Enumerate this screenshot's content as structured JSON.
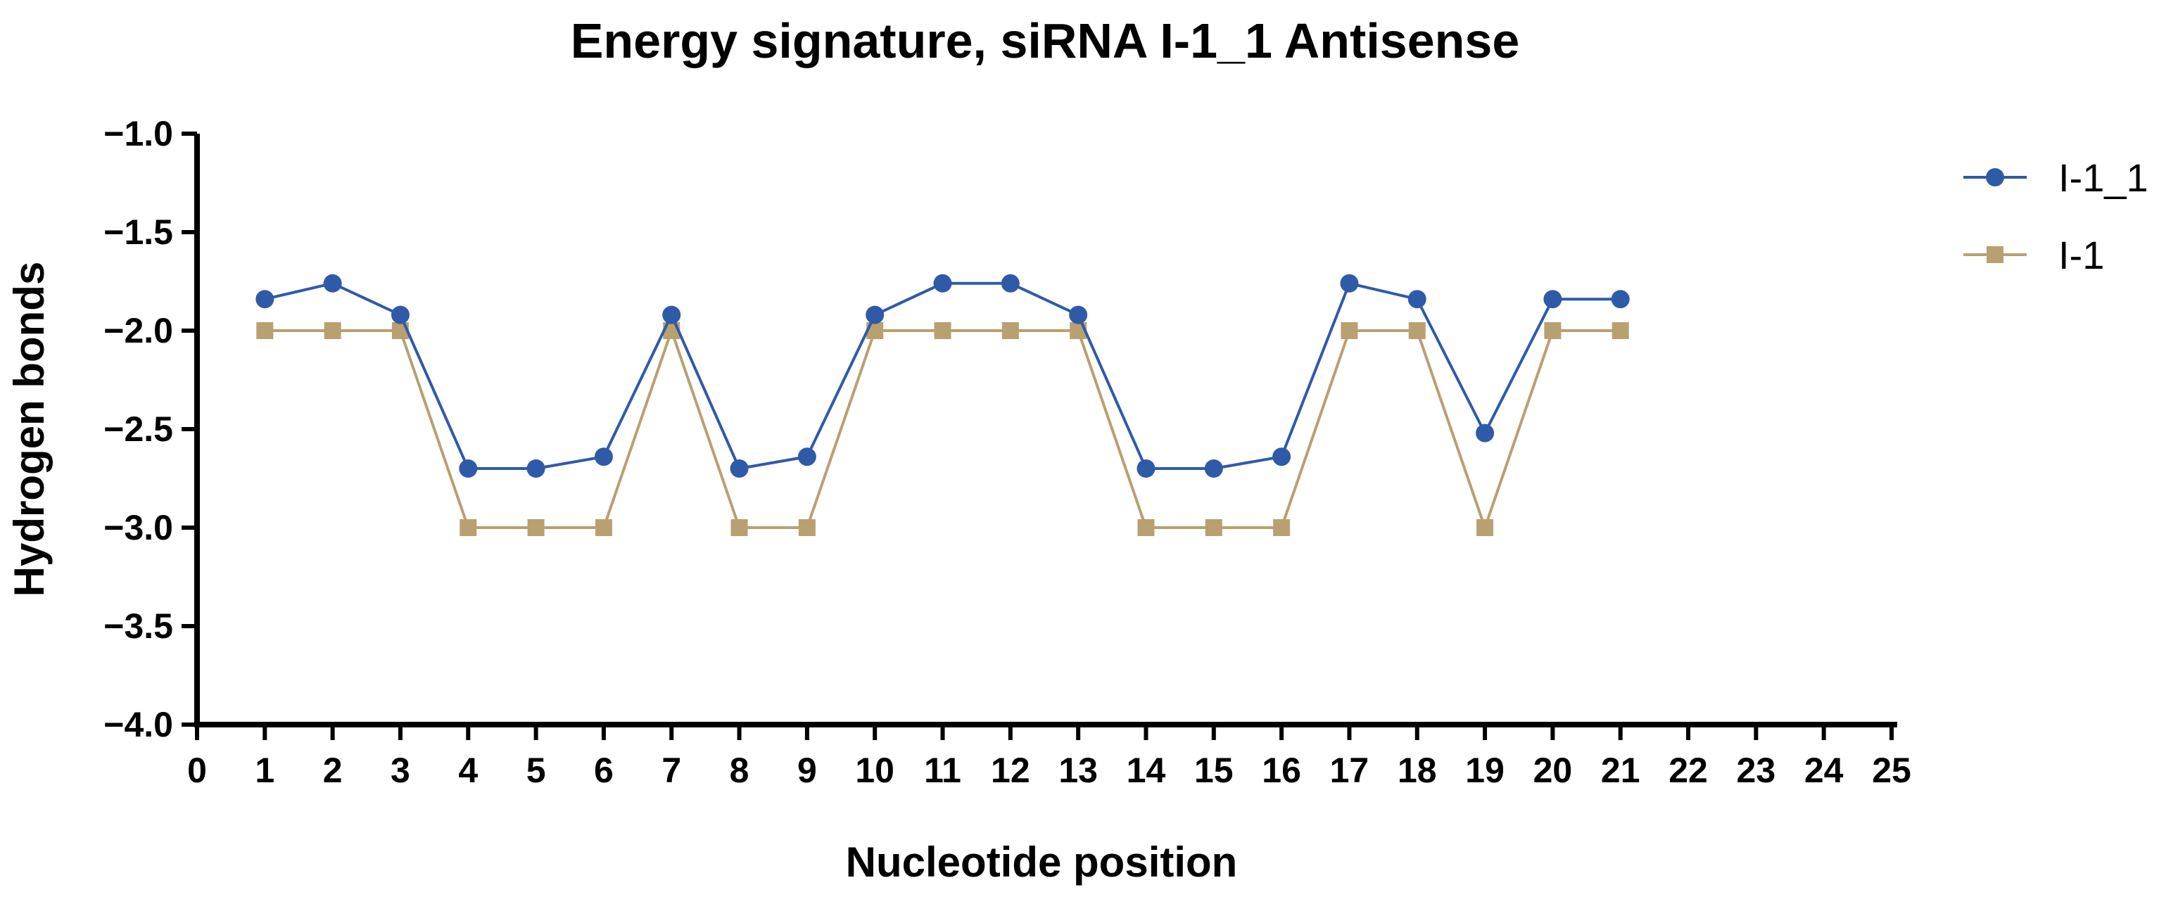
{
  "chart_data": {
    "type": "line",
    "title": "Energy signature, siRNA I-1_1 Antisense",
    "xlabel": "Nucleotide position",
    "ylabel": "Hydrogen bonds",
    "xlim": [
      0,
      25
    ],
    "ylim": [
      -4.0,
      -1.0
    ],
    "x_ticks": [
      0,
      1,
      2,
      3,
      4,
      5,
      6,
      7,
      8,
      9,
      10,
      11,
      12,
      13,
      14,
      15,
      16,
      17,
      18,
      19,
      20,
      21,
      22,
      23,
      24,
      25
    ],
    "y_ticks": [
      -1.0,
      -1.5,
      -2.0,
      -2.5,
      -3.0,
      -3.5,
      -4.0
    ],
    "y_tick_labels": [
      "−1.0",
      "−1.5",
      "−2.0",
      "−2.5",
      "−3.0",
      "−3.5",
      "−4.0"
    ],
    "grid": false,
    "legend_position": "top-right",
    "x": [
      1,
      2,
      3,
      4,
      5,
      6,
      7,
      8,
      9,
      10,
      11,
      12,
      13,
      14,
      15,
      16,
      17,
      18,
      19,
      20,
      21
    ],
    "series": [
      {
        "name": "I-1_1",
        "marker": "circle",
        "color": "#2f5aa8",
        "values": [
          -1.84,
          -1.76,
          -1.92,
          -2.7,
          -2.7,
          -2.64,
          -1.92,
          -2.7,
          -2.64,
          -1.92,
          -1.76,
          -1.76,
          -1.92,
          -2.7,
          -2.7,
          -2.64,
          -1.76,
          -1.84,
          -2.52,
          -1.84,
          -1.84
        ]
      },
      {
        "name": "I-1",
        "marker": "square",
        "color": "#b9a070",
        "values": [
          -2,
          -2,
          -2,
          -3,
          -3,
          -3,
          -2,
          -3,
          -3,
          -2,
          -2,
          -2,
          -2,
          -3,
          -3,
          -3,
          -2,
          -2,
          -3,
          -2,
          -2
        ]
      }
    ]
  }
}
